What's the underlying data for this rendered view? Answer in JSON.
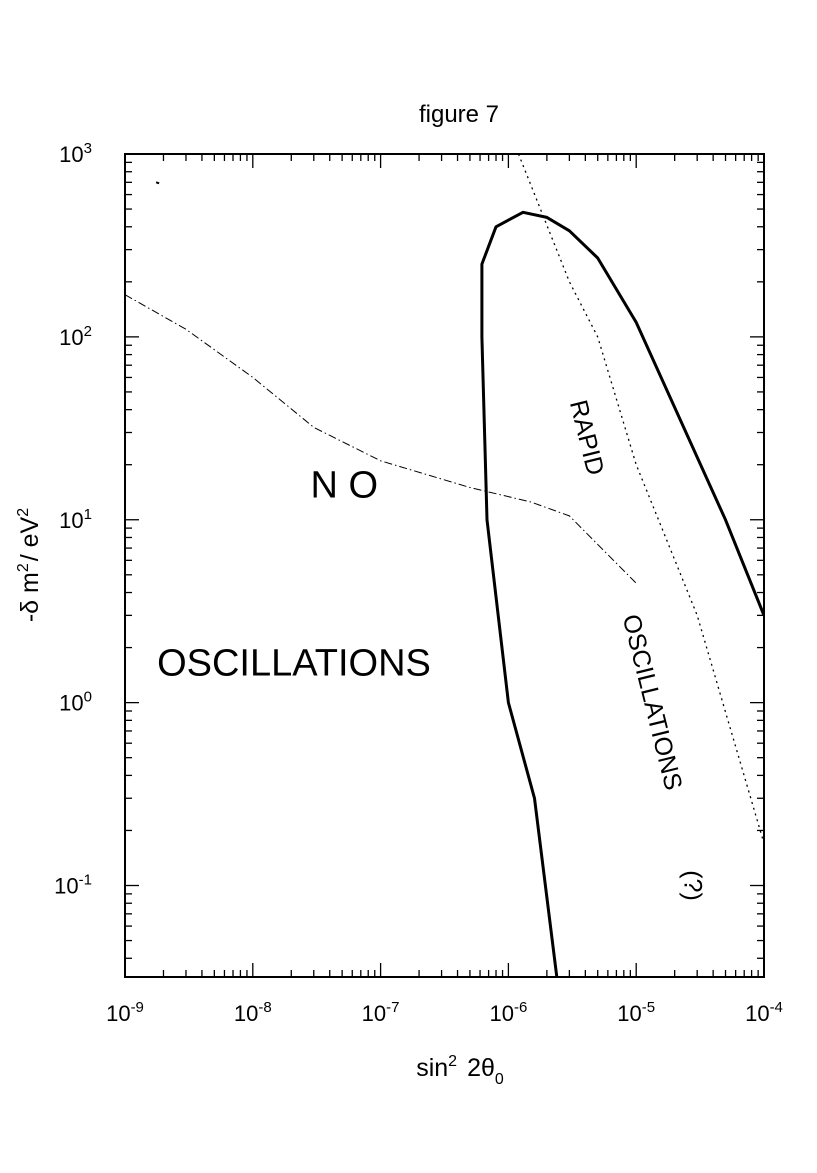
{
  "chart_data": {
    "type": "line",
    "title": "figure 7",
    "xlabel": {
      "base": "sin",
      "exp": "2",
      "mid": "2θ",
      "sub": "0"
    },
    "ylabel": {
      "p1": "-δ m",
      "e1": "2",
      "p2": "/ eV",
      "e2": "2"
    },
    "x_scale": "log",
    "y_scale": "log",
    "xlim": [
      1e-09,
      0.0001
    ],
    "ylim": [
      0.0316,
      1000
    ],
    "x_ticks": [
      {
        "v": 1e-09,
        "b": "10",
        "e": "-9"
      },
      {
        "v": 1e-08,
        "b": "10",
        "e": "-8"
      },
      {
        "v": 1e-07,
        "b": "10",
        "e": "-7"
      },
      {
        "v": 1e-06,
        "b": "10",
        "e": "-6"
      },
      {
        "v": 1e-05,
        "b": "10",
        "e": "-5"
      },
      {
        "v": 0.0001,
        "b": "10",
        "e": "-4"
      }
    ],
    "y_ticks": [
      {
        "v": 0.1,
        "b": "10",
        "e": "-1"
      },
      {
        "v": 1,
        "b": "10",
        "e": "0"
      },
      {
        "v": 10,
        "b": "10",
        "e": "1"
      },
      {
        "v": 100,
        "b": "10",
        "e": "2"
      },
      {
        "v": 1000,
        "b": "10",
        "e": "3"
      }
    ],
    "grid": false,
    "series": [
      {
        "style": "solid-thick",
        "x": [
          2.4e-06,
          1.6e-06,
          1e-06,
          6.8e-07,
          6.2e-07,
          6.2e-07,
          8e-07,
          1.3e-06,
          2e-06,
          3e-06,
          5e-06,
          1e-05,
          5e-05,
          0.0001
        ],
        "y": [
          0.031,
          0.3,
          1.0,
          10,
          100,
          250,
          400,
          480,
          450,
          380,
          270,
          120,
          10,
          3
        ]
      },
      {
        "style": "dotted",
        "x": [
          1.2e-06,
          3e-06,
          5e-06,
          1e-05,
          3e-05,
          0.0001
        ],
        "y": [
          1000,
          200,
          100,
          20,
          3,
          0.17
        ]
      },
      {
        "style": "dash-dot",
        "x": [
          1e-09,
          3e-09,
          1e-08,
          3e-08,
          1e-07,
          5e-07,
          1.5e-06,
          3e-06,
          1e-05
        ],
        "y": [
          170,
          110,
          60,
          32,
          21,
          15,
          12.5,
          10.5,
          4.5
        ]
      }
    ],
    "annotations": [
      {
        "text": "N O",
        "x": 5.2e-08,
        "y": 15,
        "rotate": 0,
        "size": 38
      },
      {
        "text": "OSCILLATIONS",
        "x": 2.1e-08,
        "y": 1.6,
        "rotate": 0,
        "size": 38
      },
      {
        "text": "RAPID",
        "x": 4e-06,
        "y": 28,
        "rotate": 76,
        "size": 25
      },
      {
        "text": "OSCILLATIONS",
        "x": 1.3e-05,
        "y": 1.0,
        "rotate": 76,
        "size": 25
      },
      {
        "text": "(?)",
        "x": 2.7e-05,
        "y": 0.1,
        "rotate": 90,
        "size": 25
      }
    ],
    "stray_point": {
      "x": 1.8e-09,
      "y": 700
    }
  }
}
